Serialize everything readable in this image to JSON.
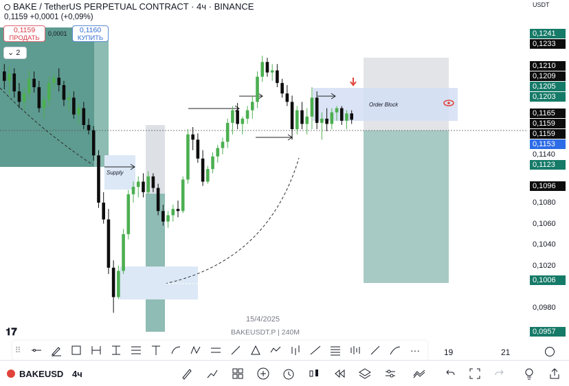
{
  "header": {
    "title": "BAKE / TetherUS PERPETUAL CONTRACT · 4ч · BINANCE",
    "quote": "0,1159 +0,0001 (+0,09%)",
    "indicators_count": "2"
  },
  "trade": {
    "sell_price": "0,1159",
    "sell_label": "ПРОДАТЬ",
    "spread": "0,0001",
    "buy_price": "0,1160",
    "buy_label": "КУПИТЬ"
  },
  "axis": {
    "currency": "USDT",
    "price_labels": [
      {
        "text": "0,1241",
        "style": "green"
      },
      {
        "text": "0,1233",
        "style": "black"
      },
      {
        "text": "0,1210",
        "style": "black"
      },
      {
        "text": "0,1209",
        "style": "black"
      },
      {
        "text": "0,1205",
        "style": "green"
      },
      {
        "text": "0,1203",
        "style": "green"
      },
      {
        "text": "0,1165",
        "style": "black"
      },
      {
        "text": "0,1159",
        "style": "black"
      },
      {
        "text": "0,1159",
        "style": "black"
      },
      {
        "text": "0,1153",
        "style": "blue"
      },
      {
        "text": "0,1140",
        "style": "plain"
      },
      {
        "text": "0,1123",
        "style": "green"
      },
      {
        "text": "0,1096",
        "style": "black"
      },
      {
        "text": "0,1080",
        "style": "plain"
      },
      {
        "text": "0,1060",
        "style": "plain"
      },
      {
        "text": "0,1040",
        "style": "plain"
      },
      {
        "text": "0,1020",
        "style": "plain"
      },
      {
        "text": "0,1006",
        "style": "green"
      },
      {
        "text": "0,0980",
        "style": "plain"
      },
      {
        "text": "0,0957",
        "style": "green"
      }
    ],
    "time_labels": [
      "19",
      "21"
    ]
  },
  "chart": {
    "supply_label": "Supply",
    "order_block_label": "Order Block",
    "date": "15/4/2025",
    "watermark": "BAKEUSDT.P | 240M"
  },
  "bottom": {
    "symbol": "BAKEUSD",
    "timeframe": "4ч"
  },
  "colors": {
    "up_candle": "#4caf50",
    "down_candle": "#0d0d0d",
    "label_green": "#167a68",
    "label_blue": "#2c6ce6",
    "alert_red": "#e0433a"
  },
  "chart_data": {
    "type": "candlestick",
    "price_range": [
      0.0957,
      0.1241
    ],
    "candles": [
      [
        0.1205,
        0.1212,
        0.1188,
        0.1196
      ],
      [
        0.1196,
        0.121,
        0.1183,
        0.1203
      ],
      [
        0.1203,
        0.1208,
        0.118,
        0.1186
      ],
      [
        0.1186,
        0.1194,
        0.117,
        0.1176
      ],
      [
        0.1176,
        0.119,
        0.1168,
        0.1184
      ],
      [
        0.1184,
        0.1206,
        0.1179,
        0.1198
      ],
      [
        0.1198,
        0.1205,
        0.1185,
        0.119
      ],
      [
        0.119,
        0.1196,
        0.1166,
        0.117
      ],
      [
        0.117,
        0.1182,
        0.116,
        0.1178
      ],
      [
        0.1178,
        0.12,
        0.1172,
        0.1194
      ],
      [
        0.1194,
        0.1203,
        0.1188,
        0.1199
      ],
      [
        0.1199,
        0.1208,
        0.1186,
        0.1192
      ],
      [
        0.1192,
        0.1196,
        0.1172,
        0.1178
      ],
      [
        0.1178,
        0.1185,
        0.1168,
        0.118
      ],
      [
        0.118,
        0.1186,
        0.116,
        0.1164
      ],
      [
        0.1164,
        0.1174,
        0.1155,
        0.117
      ],
      [
        0.117,
        0.1176,
        0.115,
        0.1154
      ],
      [
        0.1154,
        0.116,
        0.1145,
        0.1149
      ],
      [
        0.1149,
        0.1153,
        0.112,
        0.1125
      ],
      [
        0.1125,
        0.113,
        0.1075,
        0.108
      ],
      [
        0.108,
        0.109,
        0.106,
        0.1064
      ],
      [
        0.1064,
        0.1074,
        0.1012,
        0.1018
      ],
      [
        0.1018,
        0.1025,
        0.0975,
        0.099
      ],
      [
        0.099,
        0.102,
        0.0988,
        0.1015
      ],
      [
        0.1015,
        0.1055,
        0.1012,
        0.105
      ],
      [
        0.105,
        0.1092,
        0.1045,
        0.1088
      ],
      [
        0.1088,
        0.11,
        0.108,
        0.1095
      ],
      [
        0.1095,
        0.1105,
        0.1085,
        0.11
      ],
      [
        0.11,
        0.1108,
        0.1085,
        0.109
      ],
      [
        0.109,
        0.111,
        0.1088,
        0.1105
      ],
      [
        0.1105,
        0.1108,
        0.109,
        0.1094
      ],
      [
        0.1094,
        0.1098,
        0.1068,
        0.1072
      ],
      [
        0.1072,
        0.1078,
        0.1058,
        0.1062
      ],
      [
        0.1062,
        0.1072,
        0.1056,
        0.1068
      ],
      [
        0.1068,
        0.1078,
        0.1062,
        0.1074
      ],
      [
        0.1074,
        0.1082,
        0.1066,
        0.1072
      ],
      [
        0.1072,
        0.1105,
        0.107,
        0.1102
      ],
      [
        0.1102,
        0.115,
        0.1098,
        0.1145
      ],
      [
        0.1145,
        0.1152,
        0.113,
        0.114
      ],
      [
        0.114,
        0.1146,
        0.1118,
        0.1122
      ],
      [
        0.1122,
        0.113,
        0.1096,
        0.11
      ],
      [
        0.11,
        0.1115,
        0.1098,
        0.1112
      ],
      [
        0.1112,
        0.1128,
        0.1108,
        0.1124
      ],
      [
        0.1124,
        0.1135,
        0.1118,
        0.1132
      ],
      [
        0.1132,
        0.1142,
        0.1126,
        0.1138
      ],
      [
        0.1138,
        0.116,
        0.1132,
        0.1156
      ],
      [
        0.1156,
        0.1172,
        0.1145,
        0.1168
      ],
      [
        0.1168,
        0.1175,
        0.115,
        0.1155
      ],
      [
        0.1155,
        0.1162,
        0.1145,
        0.116
      ],
      [
        0.116,
        0.1172,
        0.1155,
        0.1168
      ],
      [
        0.1168,
        0.1182,
        0.116,
        0.1176
      ],
      [
        0.1176,
        0.1205,
        0.117,
        0.12
      ],
      [
        0.12,
        0.122,
        0.1195,
        0.1214
      ],
      [
        0.1214,
        0.1218,
        0.12,
        0.1204
      ],
      [
        0.1204,
        0.1212,
        0.1196,
        0.1206
      ],
      [
        0.1206,
        0.1212,
        0.119,
        0.1194
      ],
      [
        0.1194,
        0.1198,
        0.118,
        0.1184
      ],
      [
        0.1184,
        0.1192,
        0.1172,
        0.1176
      ],
      [
        0.1176,
        0.1182,
        0.114,
        0.115
      ],
      [
        0.115,
        0.1172,
        0.1145,
        0.1168
      ],
      [
        0.1168,
        0.1176,
        0.115,
        0.1155
      ],
      [
        0.1155,
        0.117,
        0.1145,
        0.1162
      ],
      [
        0.1162,
        0.119,
        0.115,
        0.118
      ],
      [
        0.118,
        0.1186,
        0.115,
        0.1156
      ],
      [
        0.1156,
        0.1166,
        0.114,
        0.116
      ],
      [
        0.116,
        0.117,
        0.1148,
        0.1155
      ],
      [
        0.1155,
        0.117,
        0.115,
        0.1166
      ],
      [
        0.1166,
        0.1172,
        0.1158,
        0.117
      ],
      [
        0.117,
        0.1172,
        0.1154,
        0.1158
      ],
      [
        0.1158,
        0.1168,
        0.115,
        0.1165
      ],
      [
        0.1165,
        0.1168,
        0.1155,
        0.1159
      ]
    ]
  }
}
